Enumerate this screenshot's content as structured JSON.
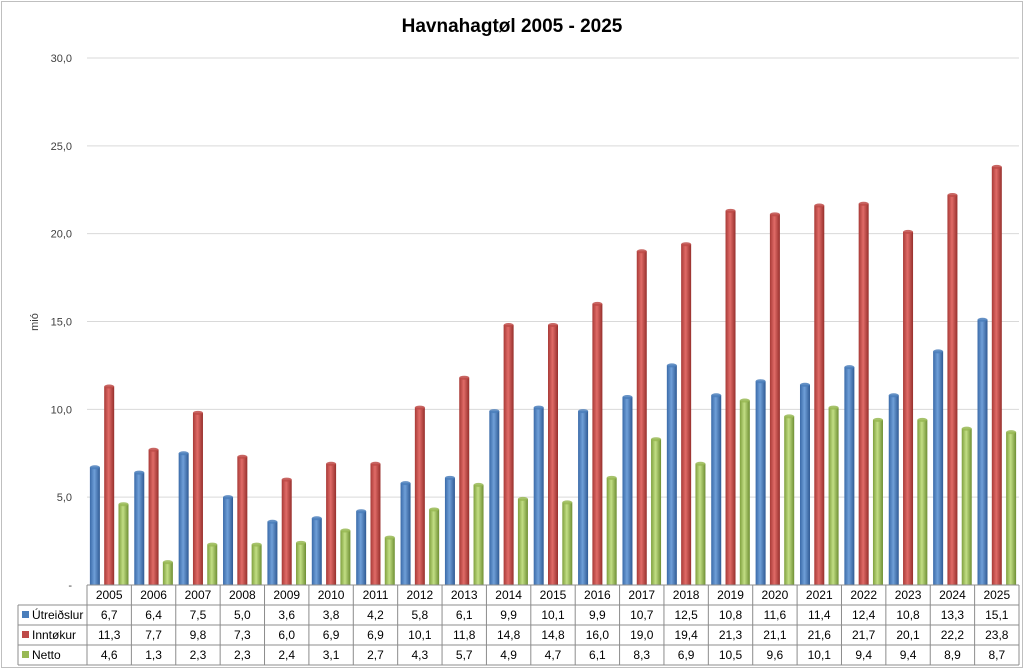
{
  "chart_data": {
    "type": "bar",
    "title": "Havnahagtøl 2005 - 2025",
    "ylabel": "mió",
    "ylim": [
      0,
      30
    ],
    "yticks": [
      "-",
      "5,0",
      "10,0",
      "15,0",
      "20,0",
      "25,0",
      "30,0"
    ],
    "grid": true,
    "legend": "data-table-left",
    "categories": [
      "2005",
      "2006",
      "2007",
      "2008",
      "2009",
      "2010",
      "2011",
      "2012",
      "2013",
      "2014",
      "2015",
      "2016",
      "2017",
      "2018",
      "2019",
      "2020",
      "2021",
      "2022",
      "2023",
      "2024",
      "2025"
    ],
    "series": [
      {
        "name": "Útreiðslur",
        "color": "#4a7ebb",
        "values": [
          6.7,
          6.4,
          7.5,
          5.0,
          3.6,
          3.8,
          4.2,
          5.8,
          6.1,
          9.9,
          10.1,
          9.9,
          10.7,
          12.5,
          10.8,
          11.6,
          11.4,
          12.4,
          10.8,
          13.3,
          15.1
        ],
        "labels": [
          "6,7",
          "6,4",
          "7,5",
          "5,0",
          "3,6",
          "3,8",
          "4,2",
          "5,8",
          "6,1",
          "9,9",
          "10,1",
          "9,9",
          "10,7",
          "12,5",
          "10,8",
          "11,6",
          "11,4",
          "12,4",
          "10,8",
          "13,3",
          "15,1"
        ]
      },
      {
        "name": "Inntøkur",
        "color": "#be4b48",
        "values": [
          11.3,
          7.7,
          9.8,
          7.3,
          6.0,
          6.9,
          6.9,
          10.1,
          11.8,
          14.8,
          14.8,
          16.0,
          19.0,
          19.4,
          21.3,
          21.1,
          21.6,
          21.7,
          20.1,
          22.2,
          23.8
        ],
        "labels": [
          "11,3",
          "7,7",
          "9,8",
          "7,3",
          "6,0",
          "6,9",
          "6,9",
          "10,1",
          "11,8",
          "14,8",
          "14,8",
          "16,0",
          "19,0",
          "19,4",
          "21,3",
          "21,1",
          "21,6",
          "21,7",
          "20,1",
          "22,2",
          "23,8"
        ]
      },
      {
        "name": "Netto",
        "color": "#98b954",
        "values": [
          4.6,
          1.3,
          2.3,
          2.3,
          2.4,
          3.1,
          2.7,
          4.3,
          5.7,
          4.9,
          4.7,
          6.1,
          8.3,
          6.9,
          10.5,
          9.6,
          10.1,
          9.4,
          9.4,
          8.9,
          8.7
        ],
        "labels": [
          "4,6",
          "1,3",
          "2,3",
          "2,3",
          "2,4",
          "3,1",
          "2,7",
          "4,3",
          "5,7",
          "4,9",
          "4,7",
          "6,1",
          "8,3",
          "6,9",
          "10,5",
          "9,6",
          "10,1",
          "9,4",
          "9,4",
          "8,9",
          "8,7"
        ]
      }
    ]
  }
}
